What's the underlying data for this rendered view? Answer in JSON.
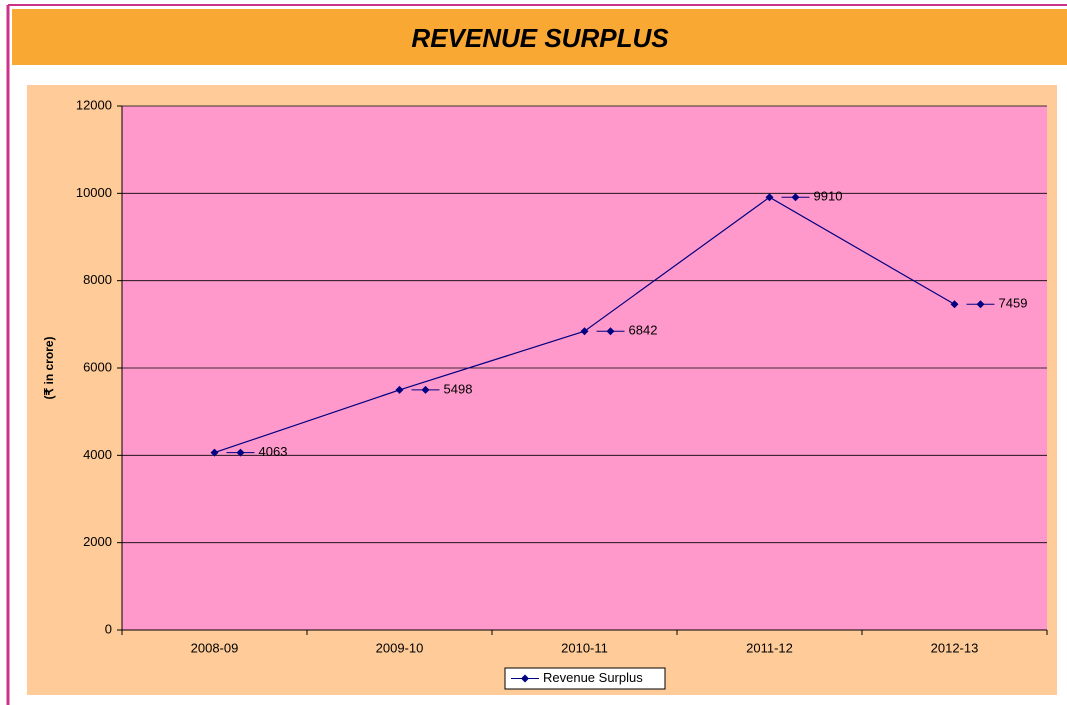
{
  "chart_data": {
    "type": "line",
    "title": "REVENUE SURPLUS",
    "y_label": "(₹ in crore)",
    "categories": [
      "2008-09",
      "2009-10",
      "2010-11",
      "2011-12",
      "2012-13"
    ],
    "series": [
      {
        "name": "Revenue Surplus",
        "color": "#000080",
        "values": [
          4063,
          5498,
          6842,
          9910,
          7459
        ]
      }
    ],
    "ylim": [
      0,
      12000
    ],
    "yticks": [
      0,
      2000,
      4000,
      6000,
      8000,
      10000,
      12000
    ],
    "grid": true,
    "legend": "bottom",
    "data_labels": true
  }
}
